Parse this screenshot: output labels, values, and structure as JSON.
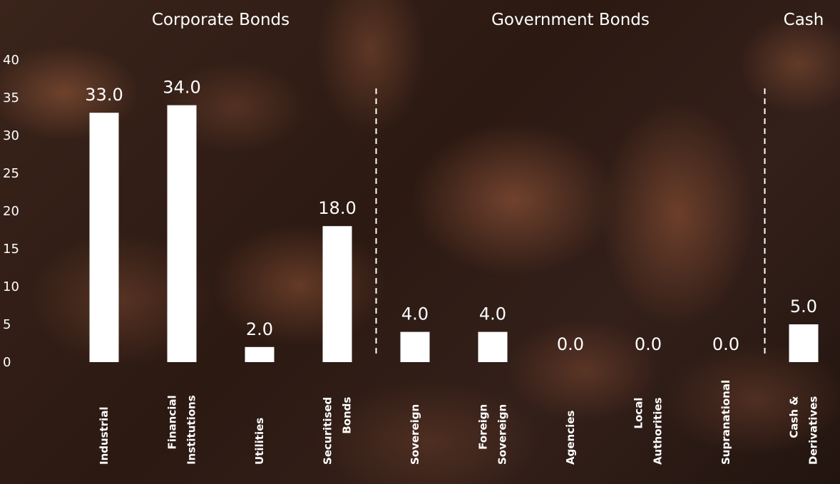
{
  "chart_data": {
    "type": "bar",
    "title": "",
    "xlabel": "",
    "ylabel": "",
    "ylim": [
      0,
      40
    ],
    "yticks": [
      0,
      5,
      10,
      15,
      20,
      25,
      30,
      35,
      40
    ],
    "grid": false,
    "groups": [
      {
        "name": "Corporate Bonds",
        "categories": [
          "Industrial",
          "Financial Institutions",
          "Utilities",
          "Securitised Bonds"
        ]
      },
      {
        "name": "Government Bonds",
        "categories": [
          "Sovereign",
          "Foreign Sovereign",
          "Agencies",
          "Local Authorities",
          "Supranational"
        ]
      },
      {
        "name": "Cash",
        "categories": [
          "Cash & Derivatives"
        ]
      }
    ],
    "categories": [
      "Industrial",
      "Financial Institutions",
      "Utilities",
      "Securitised Bonds",
      "Sovereign",
      "Foreign Sovereign",
      "Agencies",
      "Local Authorities",
      "Supranational",
      "Cash & Derivatives"
    ],
    "category_label_lines": [
      [
        "Industrial"
      ],
      [
        "Financial",
        "Institutions"
      ],
      [
        "Utilities"
      ],
      [
        "Securitised",
        "Bonds"
      ],
      [
        "Sovereign"
      ],
      [
        "Foreign",
        "Sovereign"
      ],
      [
        "Agencies"
      ],
      [
        "Local",
        "Authorities"
      ],
      [
        "Supranational"
      ],
      [
        "Cash &",
        "Derivatives"
      ]
    ],
    "values": [
      33.0,
      34.0,
      2.0,
      18.0,
      4.0,
      4.0,
      0.0,
      0.0,
      0.0,
      5.0
    ],
    "data_labels": [
      "33.0",
      "34.0",
      "2.0",
      "18.0",
      "4.0",
      "4.0",
      "0.0",
      "0.0",
      "0.0",
      "5.0"
    ],
    "colors": {
      "bars": "#ffffff",
      "text": "#ffffff",
      "dividers": "#ffffff"
    }
  }
}
